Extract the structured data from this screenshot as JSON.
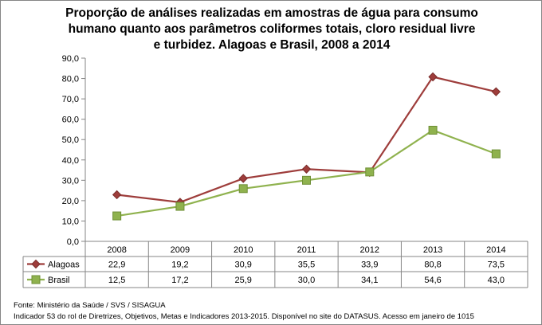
{
  "chart_data": {
    "type": "line",
    "title_lines": [
      "Proporção de análises realizadas em amostras de água para consumo",
      "humano quanto aos parâmetros coliformes totais, cloro residual livre",
      "e turbidez. Alagoas e Brasil, 2008 a 2014"
    ],
    "categories": [
      "2008",
      "2009",
      "2010",
      "2011",
      "2012",
      "2013",
      "2014"
    ],
    "series": [
      {
        "name": "Alagoas",
        "values": [
          22.9,
          19.2,
          30.9,
          35.5,
          33.9,
          80.8,
          73.5
        ],
        "labels": [
          "22,9",
          "19,2",
          "30,9",
          "35,5",
          "33,9",
          "80,8",
          "73,5"
        ],
        "color": "#9E3D3B",
        "marker": "diamond"
      },
      {
        "name": "Brasil",
        "values": [
          12.5,
          17.2,
          25.9,
          30.0,
          34.1,
          54.6,
          43.0
        ],
        "labels": [
          "12,5",
          "17,2",
          "25,9",
          "30,0",
          "34,1",
          "54,6",
          "43,0"
        ],
        "color": "#8FB24E",
        "marker": "square"
      }
    ],
    "ylim": [
      0,
      90
    ],
    "yticks": [
      0,
      10,
      20,
      30,
      40,
      50,
      60,
      70,
      80,
      90
    ],
    "ytick_labels": [
      "0,0",
      "10,0",
      "20,0",
      "30,0",
      "40,0",
      "50,0",
      "60,0",
      "70,0",
      "80,0",
      "90,0"
    ],
    "grid": false,
    "legend": "data-table"
  },
  "footer": {
    "source": "Fonte: Ministério da Saúde / SVS / SISAGUA",
    "note": "Indicador 53 do rol de Diretrizes, Objetivos, Metas e Indicadores 2013-2015. Disponível no site do DATASUS. Acesso em janeiro de 1015"
  }
}
